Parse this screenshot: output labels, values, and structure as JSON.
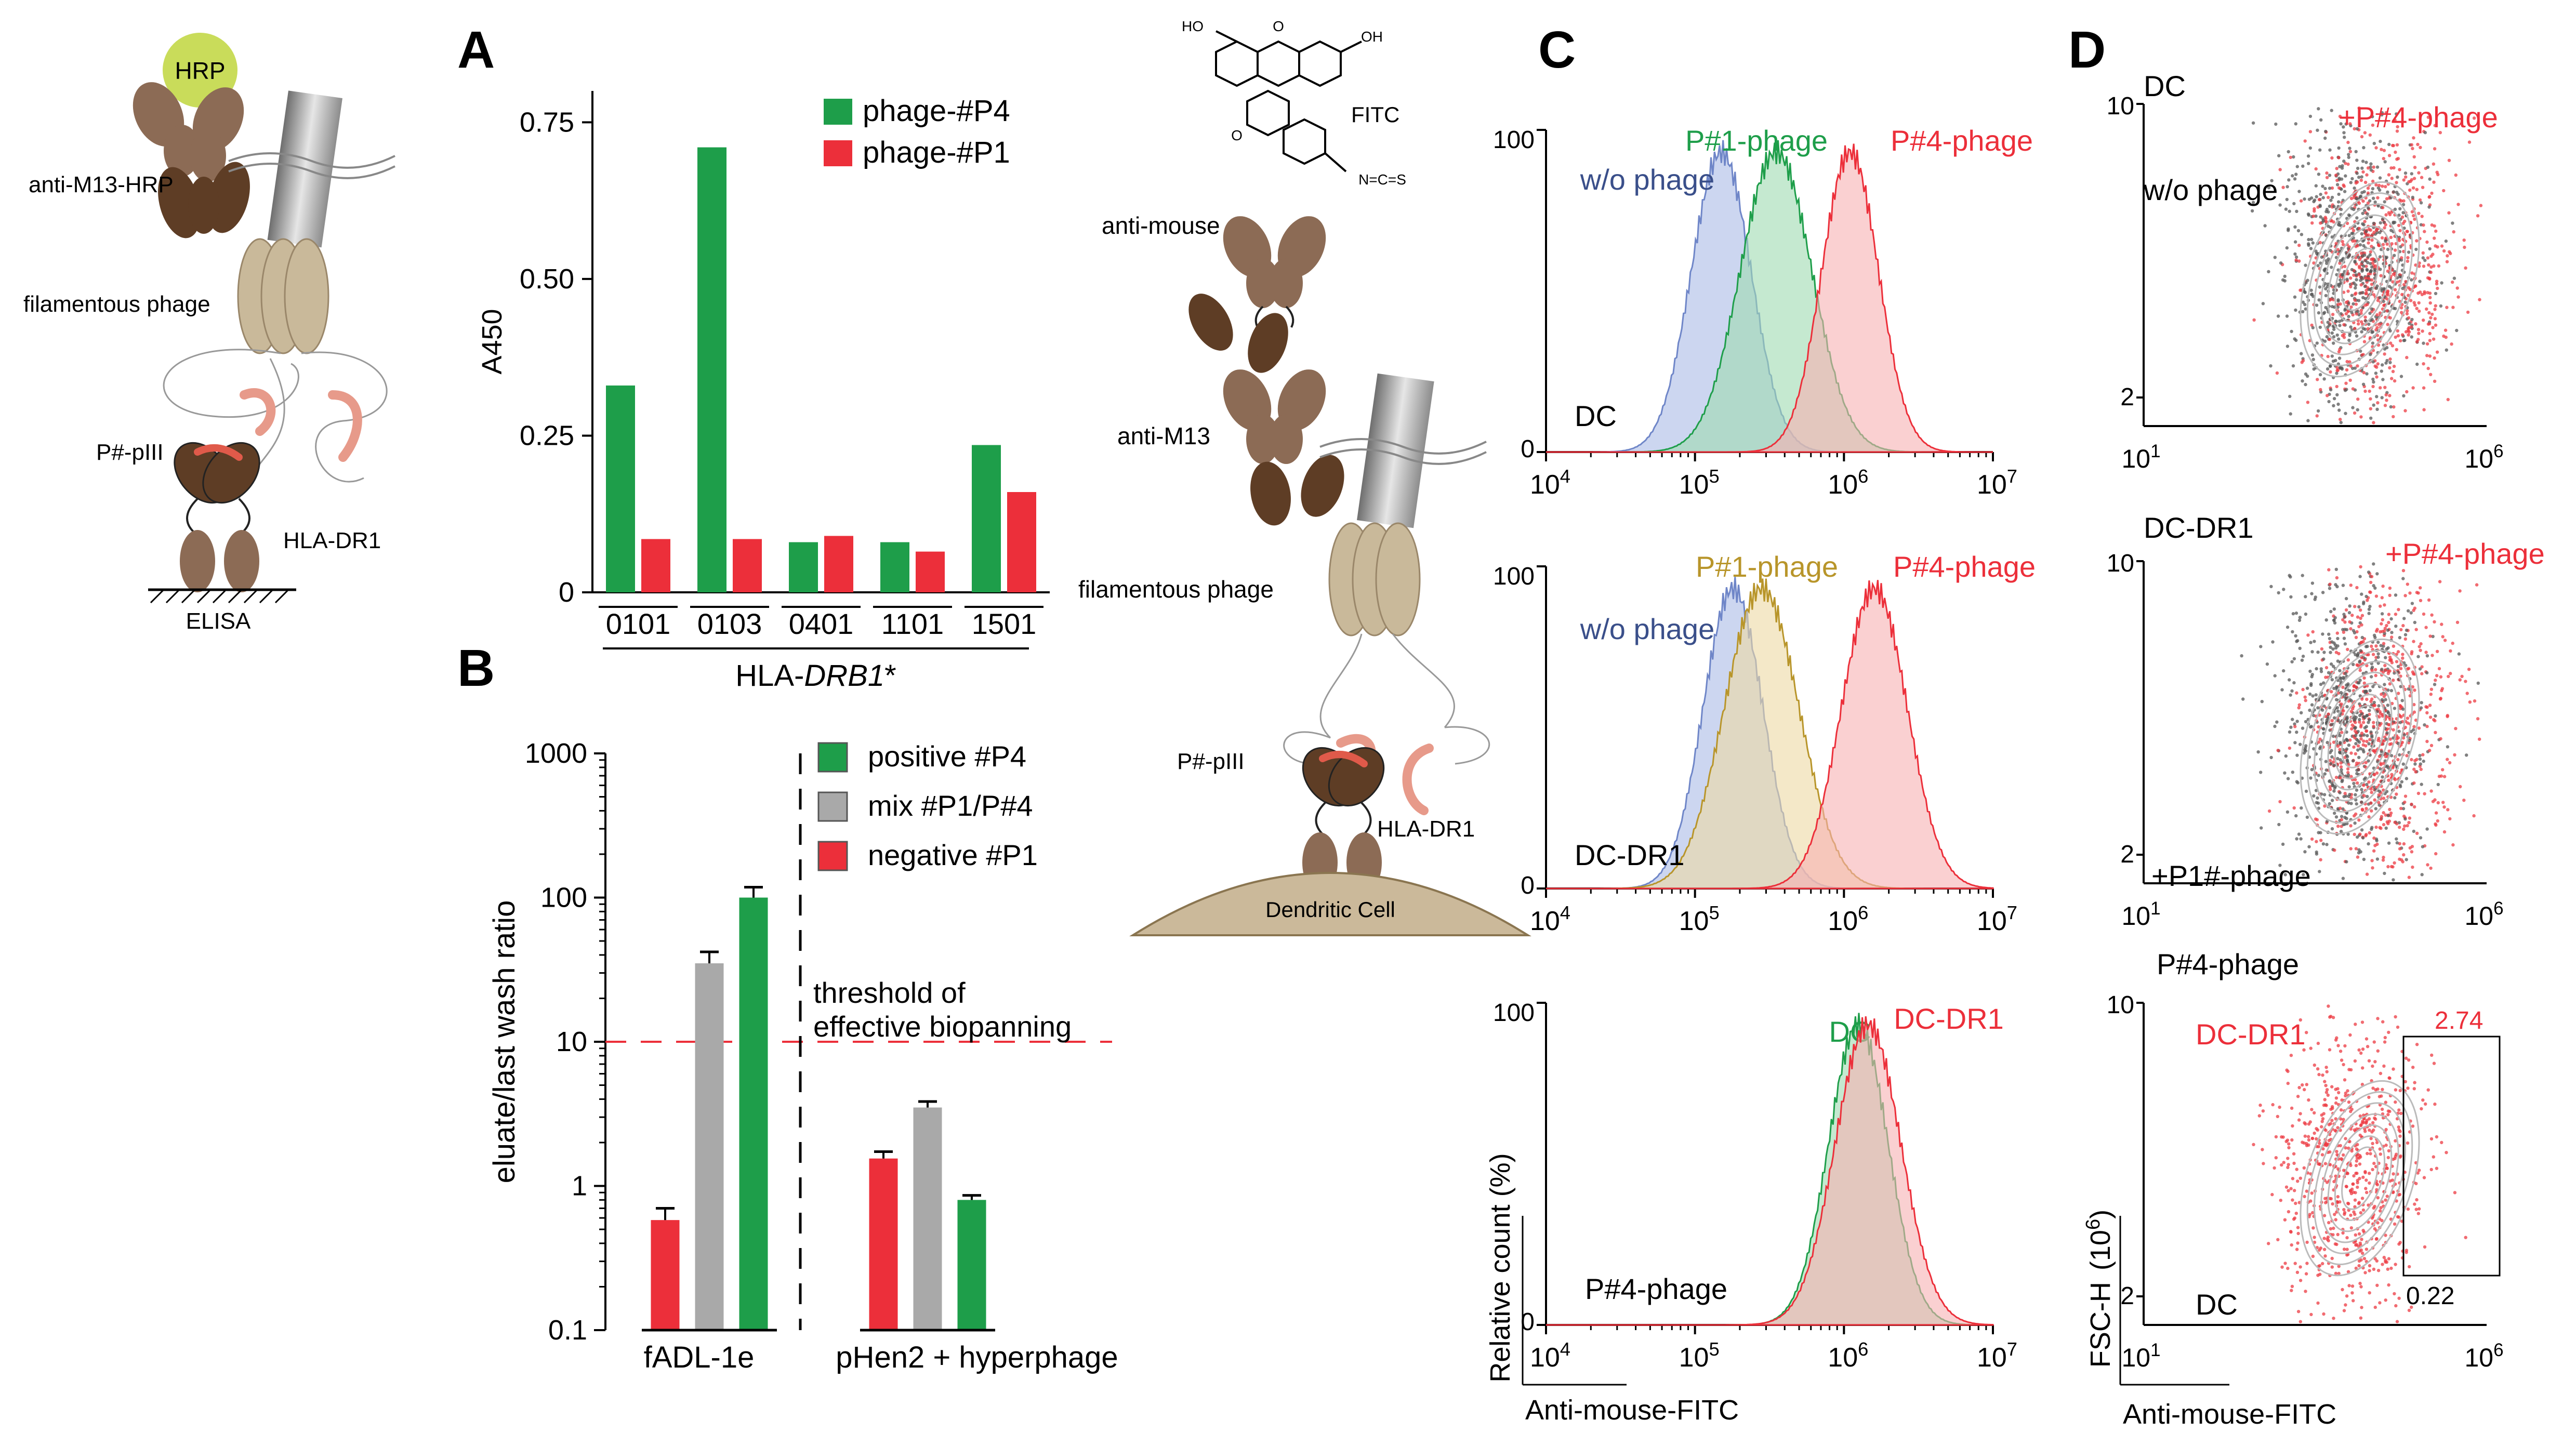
{
  "panels": {
    "A": "A",
    "B": "B",
    "C": "C",
    "D": "D"
  },
  "colors": {
    "green": "#1e9e4a",
    "red": "#ec2f3a",
    "gray": "#a9a9a9",
    "blue": "#6f86c8",
    "greenfill": "#8fd3a0",
    "redfill": "#f5a0a2",
    "tan": "#d7b76a",
    "dark": "#5e3d25",
    "light": "#8c6b55",
    "phage": "#c9b99a"
  },
  "schematic_left": {
    "hrp": "HRP",
    "anti_m13_hrp": "anti-M13-HRP",
    "filamentous_phage": "filamentous phage",
    "p_piii": "P#-pIII",
    "hla_dr1": "HLA-DR1",
    "elisa": "ELISA"
  },
  "schematic_mid": {
    "fitc": "FITC",
    "atom_o": "O",
    "atom_ho": "HO",
    "atom_oh": "OH",
    "atom_ncs": "N=C=S",
    "anti_mouse": "anti-mouse",
    "anti_m13": "anti-M13",
    "filamentous_phage": "filamentous phage",
    "p_piii": "P#-pIII",
    "hla_dr1": "HLA-DR1",
    "dendritic_cell": "Dendritic Cell"
  },
  "chart_data": [
    {
      "id": "A",
      "type": "bar",
      "title": "",
      "xlabel_prefix": "HLA-",
      "xlabel_italic": "DRB1",
      "xlabel_suffix": "*",
      "ylabel": "A450",
      "ylim": [
        0,
        0.8
      ],
      "yticks": [
        0,
        0.25,
        0.5,
        0.75
      ],
      "ytick_labels": [
        "0",
        "0.25",
        "0.50",
        "0.75"
      ],
      "categories": [
        "0101",
        "0103",
        "0401",
        "1101",
        "1501"
      ],
      "series": [
        {
          "name": "phage-#P4",
          "color": "#1e9e4a",
          "values": [
            0.33,
            0.71,
            0.08,
            0.08,
            0.235
          ]
        },
        {
          "name": "phage-#P1",
          "color": "#ec2f3a",
          "values": [
            0.085,
            0.085,
            0.09,
            0.065,
            0.16
          ]
        }
      ],
      "legend_position": "top-right"
    },
    {
      "id": "B",
      "type": "bar",
      "yscale": "log",
      "ylabel": "eluate/last wash ratio",
      "ylim": [
        0.1,
        1000
      ],
      "ytick_labels": [
        "0.1",
        "1",
        "10",
        "100",
        "1000"
      ],
      "groups": [
        "fADL-1e",
        "pHen2 + hyperphage"
      ],
      "series": [
        {
          "name": "negative #P1",
          "color": "#ec2f3a",
          "values": [
            0.58,
            1.55
          ],
          "errors": [
            0.12,
            0.18
          ]
        },
        {
          "name": "mix #P1/P#4",
          "color": "#a9a9a9",
          "values": [
            35,
            3.5
          ],
          "errors": [
            7,
            0.35
          ]
        },
        {
          "name": "positive #P4",
          "color": "#1e9e4a",
          "values": [
            100,
            0.8
          ],
          "errors": [
            18,
            0.06
          ]
        }
      ],
      "legend_order": [
        "positive #P4",
        "mix #P1/P#4",
        "negative #P1"
      ],
      "threshold": {
        "value": 10,
        "label_line1": "threshold of",
        "label_line2": "effective biopanning"
      },
      "legend_position": "top-right"
    },
    {
      "id": "C",
      "type": "area",
      "xscale": "log",
      "xlim": [
        10000,
        10000000
      ],
      "ylim": [
        0,
        100
      ],
      "xlabel": "Anti-mouse-FITC",
      "ylabel": "Relative count  (%)",
      "xtick_labels": [
        "10",
        "10",
        "10",
        "10"
      ],
      "xtick_exps": [
        "4",
        "5",
        "6",
        "7"
      ],
      "ytick_labels": [
        "0",
        "100"
      ],
      "subplots": [
        {
          "sample": "DC",
          "series": [
            {
              "name": "w/o phage",
              "color": "#6f86c8",
              "peak": 150000,
              "width": 0.2
            },
            {
              "name": "P#1-phage",
              "color": "#1e9e4a",
              "peak": 350000,
              "width": 0.24
            },
            {
              "name": "P#4-phage",
              "color": "#ec2f3a",
              "peak": 1100000,
              "width": 0.19
            }
          ]
        },
        {
          "sample": "DC-DR1",
          "series": [
            {
              "name": "w/o phage",
              "color": "#6f86c8",
              "peak": 180000,
              "width": 0.2
            },
            {
              "name": "P#1-phage",
              "color": "#b8952a",
              "peak": 280000,
              "width": 0.25
            },
            {
              "name": "P#4-phage",
              "color": "#ec2f3a",
              "peak": 1600000,
              "width": 0.22
            }
          ]
        },
        {
          "sample": "P#4-phage",
          "series": [
            {
              "name": "DC",
              "color": "#1e9e4a",
              "peak": 1250000,
              "width": 0.2
            },
            {
              "name": "DC-DR1",
              "color": "#ec2f3a",
              "peak": 1450000,
              "width": 0.22
            }
          ]
        }
      ]
    },
    {
      "id": "D",
      "type": "scatter",
      "xscale": "log",
      "xlim": [
        10,
        1000000
      ],
      "xlabel": "Anti-mouse-FITC",
      "ylabel": "FSC-H",
      "ylabel_unit": "(10",
      "ylabel_unit_exp": "6",
      "ylabel_unit_close": ")",
      "xtick_labels": [
        "10",
        "10"
      ],
      "xtick_exps": [
        "1",
        "6"
      ],
      "ytick_labels": [
        "2",
        "10"
      ],
      "subplots": [
        {
          "sample": "DC",
          "gray_label": "w/o phage",
          "red_label": "+P#4-phage"
        },
        {
          "sample": "DC-DR1",
          "gray_label": "+P1#-phage",
          "red_label": "+P#4-phage"
        },
        {
          "sample": "P#4-phage",
          "gray_label": "DC",
          "red_label": "DC-DR1",
          "gate_value_top": "2.74",
          "gate_value_bottom": "0.22"
        }
      ]
    }
  ]
}
